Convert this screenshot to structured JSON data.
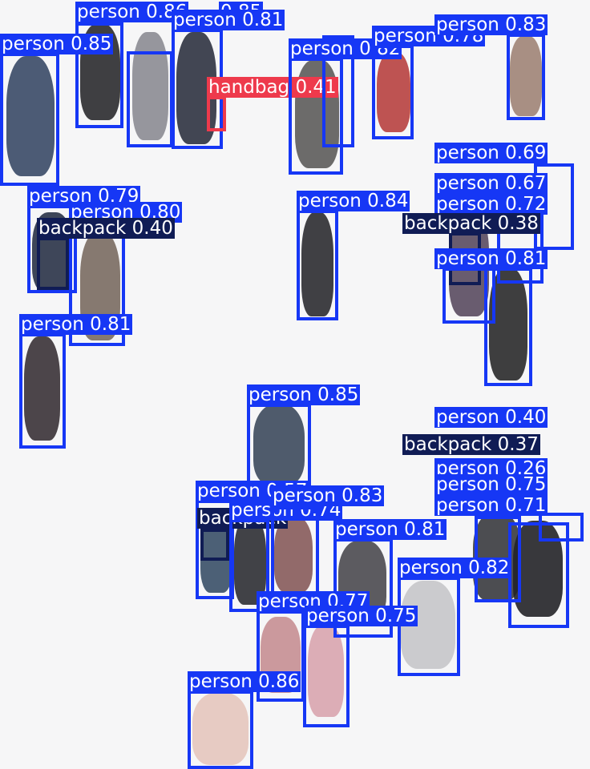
{
  "colors": {
    "person": "#1637f5",
    "backpack": "#101c55",
    "handbag": "#ee3a4c",
    "background": "#f6f6f7"
  },
  "detections": [
    {
      "cls": "person",
      "label": "person 0.86",
      "conf": 0.86
    },
    {
      "cls": "person",
      "label": "0.85",
      "conf": 0.85
    },
    {
      "cls": "person",
      "label": "person 0.81",
      "conf": 0.81
    },
    {
      "cls": "person",
      "label": "person 0.85",
      "conf": 0.85
    },
    {
      "cls": "handbag",
      "label": "handbag 0.41",
      "conf": 0.41
    },
    {
      "cls": "person",
      "label": "person 0.82",
      "conf": 0.82
    },
    {
      "cls": "person",
      "label": "person 0.78",
      "conf": 0.78
    },
    {
      "cls": "person",
      "label": "person 0.83",
      "conf": 0.83
    },
    {
      "cls": "person",
      "label": "person 0.69",
      "conf": 0.69
    },
    {
      "cls": "person",
      "label": "person 0.67",
      "conf": 0.67
    },
    {
      "cls": "person",
      "label": "person 0.72",
      "conf": 0.72
    },
    {
      "cls": "backpack",
      "label": "backpack 0.38",
      "conf": 0.38
    },
    {
      "cls": "person",
      "label": "person 0.81",
      "conf": 0.81
    },
    {
      "cls": "person",
      "label": "person 0.84",
      "conf": 0.84
    },
    {
      "cls": "person",
      "label": "person 0.79",
      "conf": 0.79
    },
    {
      "cls": "person",
      "label": "person 0.80",
      "conf": 0.8
    },
    {
      "cls": "backpack",
      "label": "backpack 0.40",
      "conf": 0.4
    },
    {
      "cls": "person",
      "label": "person 0.81",
      "conf": 0.81
    },
    {
      "cls": "person",
      "label": "person 0.85",
      "conf": 0.85
    },
    {
      "cls": "person",
      "label": "person 0.40",
      "conf": 0.4
    },
    {
      "cls": "backpack",
      "label": "backpack 0.37",
      "conf": 0.37
    },
    {
      "cls": "person",
      "label": "person 0.26",
      "conf": 0.26
    },
    {
      "cls": "person",
      "label": "person 0.75",
      "conf": 0.75
    },
    {
      "cls": "person",
      "label": "person 0.71",
      "conf": 0.71
    },
    {
      "cls": "person",
      "label": "person 0.57",
      "conf": 0.57
    },
    {
      "cls": "backpack",
      "label": "backpack",
      "conf": null
    },
    {
      "cls": "person",
      "label": "person 0.74",
      "conf": 0.74
    },
    {
      "cls": "person",
      "label": "person 0.83",
      "conf": 0.83
    },
    {
      "cls": "person",
      "label": "person 0.81",
      "conf": 0.81
    },
    {
      "cls": "person",
      "label": "person 0.82",
      "conf": 0.82
    },
    {
      "cls": "person",
      "label": "person 0.77",
      "conf": 0.77
    },
    {
      "cls": "person",
      "label": "person 0.75",
      "conf": 0.75
    },
    {
      "cls": "person",
      "label": "person 0.86",
      "conf": 0.86
    }
  ]
}
